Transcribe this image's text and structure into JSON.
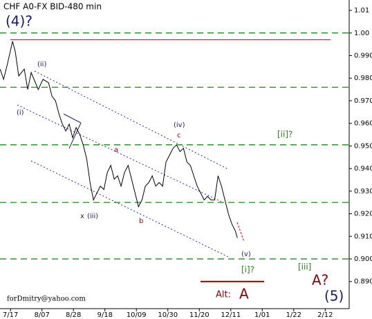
{
  "chart_data": {
    "type": "line",
    "title": "CHF A0-FX BID-480 min",
    "x": [
      -6.9,
      -4.6,
      -2.3,
      1.4,
      3.2,
      5.5,
      9.2,
      11.5,
      13.8,
      18.5,
      21.7,
      25.4,
      27.7,
      30.0,
      32.3,
      34.6,
      36.9,
      39.2,
      41.5,
      43.8,
      46.2,
      48.5,
      50.8,
      53.1,
      55.4,
      57.7,
      60.0,
      62.3,
      64.6,
      66.9,
      69.2,
      71.5,
      73.8,
      76.1,
      78.5,
      80.8,
      83.1,
      85.4,
      87.7,
      90.0,
      92.3,
      94.6,
      96.9,
      99.2,
      101.5,
      103.8,
      106.2,
      108.5,
      110.8,
      113.1,
      115.4,
      117.7,
      120.0,
      122.3,
      124.6,
      126.9,
      129.2,
      131.5,
      133.8,
      136.2,
      138.5,
      140.8,
      143.1,
      145.4,
      147.7,
      150.0,
      151.4
    ],
    "series": [
      {
        "color": "#000000",
        "values": [
          0.984,
          0.9795,
          0.9856,
          0.9963,
          0.9917,
          0.981,
          0.984,
          0.975,
          0.9825,
          0.975,
          0.9795,
          0.978,
          0.972,
          0.97,
          0.9643,
          0.9597,
          0.9566,
          0.9597,
          0.9536,
          0.9582,
          0.9551,
          0.9505,
          0.9444,
          0.9337,
          0.9261,
          0.9292,
          0.9322,
          0.9307,
          0.9383,
          0.9414,
          0.9353,
          0.9368,
          0.9322,
          0.9383,
          0.9414,
          0.9353,
          0.9292,
          0.9231,
          0.9261,
          0.9322,
          0.9338,
          0.9368,
          0.9322,
          0.9338,
          0.9322,
          0.9429,
          0.946,
          0.949,
          0.9505,
          0.9475,
          0.949,
          0.9429,
          0.9414,
          0.9368,
          0.9322,
          0.9292,
          0.9261,
          0.9277,
          0.9261,
          0.9261,
          0.9368,
          0.9322,
          0.9261,
          0.92,
          0.9155,
          0.9124,
          0.9093
        ]
      }
    ],
    "xlim": [
      -7,
      226
    ],
    "xticks": [
      {
        "value": 0,
        "label": "7/17"
      },
      {
        "value": 21,
        "label": "8/07"
      },
      {
        "value": 42,
        "label": "8/28"
      },
      {
        "value": 63,
        "label": "9/18"
      },
      {
        "value": 84,
        "label": "10/09"
      },
      {
        "value": 105,
        "label": "10/30"
      },
      {
        "value": 126,
        "label": "11/20"
      },
      {
        "value": 147,
        "label": "12/11"
      },
      {
        "value": 168,
        "label": "1/01"
      },
      {
        "value": 189,
        "label": "1/22"
      },
      {
        "value": 210,
        "label": "2/12"
      }
    ],
    "ylim": [
      0.878,
      1.0146
    ],
    "yticks": [
      1.01,
      {
        "value": 1,
        "label": "1.00"
      },
      {
        "value": 0.99,
        "label": "0.990"
      },
      {
        "value": 0.98,
        "label": "0.980"
      },
      {
        "value": 0.97,
        "label": "0.970"
      },
      {
        "value": 0.96,
        "label": "0.960"
      },
      {
        "value": 0.95,
        "label": "0.950"
      },
      {
        "value": 0.94,
        "label": "0.940"
      },
      {
        "value": 0.93,
        "label": "0.930"
      },
      {
        "value": 0.92,
        "label": "0.920"
      },
      {
        "value": 0.91,
        "label": "0.910"
      },
      {
        "value": 0.9,
        "label": "0.900"
      },
      {
        "value": 0.89,
        "label": "0.890"
      }
    ],
    "levels": [
      {
        "value": 1.0,
        "color": "#008000"
      },
      {
        "value": 0.976,
        "color": "#008000"
      },
      {
        "value": 0.9505,
        "color": "#008000"
      },
      {
        "value": 0.925,
        "color": "#008000"
      },
      {
        "value": 0.9,
        "color": "#008000"
      },
      {
        "value": 0.997,
        "color": "#c00000"
      },
      {
        "value": 0.89,
        "color": "#8b0000"
      }
    ],
    "annotations": [
      "(4)?",
      "(ii)",
      "(i)",
      "(iv)",
      "c",
      "a",
      "x",
      "(iii)",
      "b",
      "(v)",
      "[ii]?",
      "[i]?",
      "[iii]",
      "A?",
      "(5)",
      "Alt:",
      "A",
      "forDmitry@yahoo.com"
    ]
  }
}
